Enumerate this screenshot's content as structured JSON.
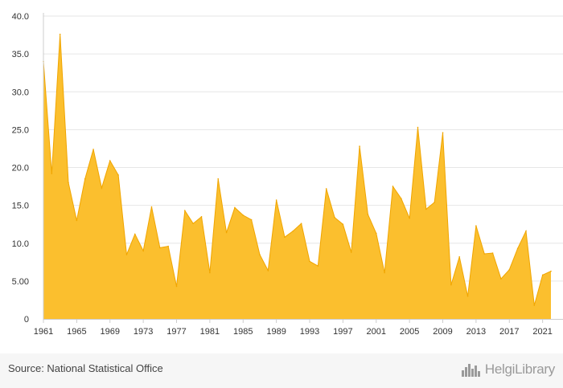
{
  "chart_data": {
    "type": "area",
    "title": "",
    "xlabel": "",
    "ylabel": "",
    "x": [
      1961,
      1962,
      1963,
      1964,
      1965,
      1966,
      1967,
      1968,
      1969,
      1970,
      1971,
      1972,
      1973,
      1974,
      1975,
      1976,
      1977,
      1978,
      1979,
      1980,
      1981,
      1982,
      1983,
      1984,
      1985,
      1986,
      1987,
      1988,
      1989,
      1990,
      1991,
      1992,
      1993,
      1994,
      1995,
      1996,
      1997,
      1998,
      1999,
      2000,
      2001,
      2002,
      2003,
      2004,
      2005,
      2006,
      2007,
      2008,
      2009,
      2010,
      2011,
      2012,
      2013,
      2014,
      2015,
      2016,
      2017,
      2018,
      2019,
      2020,
      2021,
      2022
    ],
    "values": [
      34.0,
      19.2,
      37.6,
      18.0,
      13.0,
      18.5,
      22.4,
      17.3,
      20.9,
      19.0,
      8.5,
      11.2,
      9.0,
      14.8,
      9.4,
      9.6,
      4.3,
      14.3,
      12.6,
      13.5,
      6.1,
      18.5,
      11.4,
      14.7,
      13.7,
      13.1,
      8.5,
      6.4,
      15.7,
      10.8,
      11.6,
      12.6,
      7.6,
      7.0,
      17.2,
      13.4,
      12.5,
      8.8,
      22.8,
      13.8,
      11.3,
      6.1,
      17.5,
      15.9,
      13.3,
      25.3,
      14.5,
      15.4,
      24.6,
      4.5,
      8.2,
      3.0,
      12.3,
      8.6,
      8.7,
      5.3,
      6.5,
      9.3,
      11.6,
      1.8,
      5.8,
      6.3
    ],
    "ylim": [
      0,
      40
    ],
    "y_ticks": [
      "0",
      "5.00",
      "10.0",
      "15.0",
      "20.0",
      "25.0",
      "30.0",
      "35.0",
      "40.0"
    ],
    "x_ticks": [
      "1961",
      "1965",
      "1969",
      "1973",
      "1977",
      "1981",
      "1985",
      "1989",
      "1993",
      "1997",
      "2001",
      "2005",
      "2009",
      "2013",
      "2017",
      "2021"
    ],
    "grid": true,
    "legend": "none",
    "colors": {
      "fill": "#fbbf2e",
      "stroke": "#f0a500",
      "grid": "#e6e6e6",
      "axis": "#cccccc"
    }
  },
  "footer": {
    "source": "Source: National Statistical Office",
    "logo_text": "HelgiLibrary"
  },
  "icons": {
    "logo": "skyline-logo-icon"
  }
}
